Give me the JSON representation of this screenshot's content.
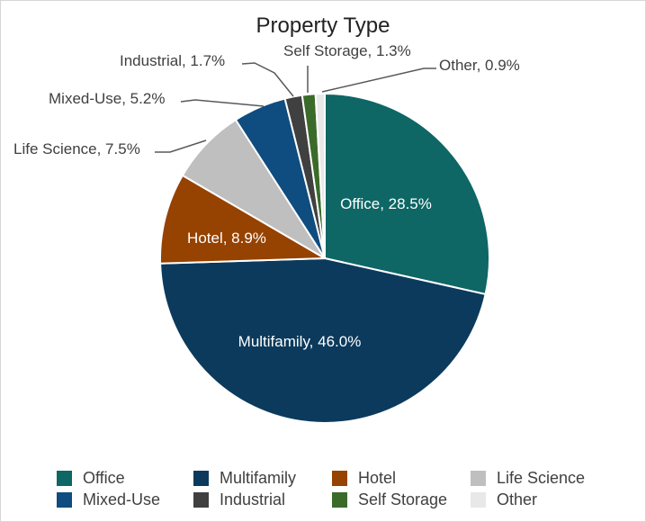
{
  "chart_data": {
    "type": "pie",
    "title": "Property Type",
    "slices": [
      {
        "name": "Office",
        "value": 28.5,
        "label": "Office, 28.5%",
        "color": "#0e6665",
        "label_color": "#ffffff"
      },
      {
        "name": "Multifamily",
        "value": 46.0,
        "label": "Multifamily, 46.0%",
        "color": "#0b3a5c",
        "label_color": "#ffffff"
      },
      {
        "name": "Hotel",
        "value": 8.9,
        "label": "Hotel, 8.9%",
        "color": "#964200",
        "label_color": "#ffffff"
      },
      {
        "name": "Life Science",
        "value": 7.5,
        "label": "Life Science, 7.5%",
        "color": "#bfbfbf",
        "label_color": "#404040"
      },
      {
        "name": "Mixed-Use",
        "value": 5.2,
        "label": "Mixed-Use, 5.2%",
        "color": "#0f4c7f",
        "label_color": "#404040"
      },
      {
        "name": "Industrial",
        "value": 1.7,
        "label": "Industrial, 1.7%",
        "color": "#404040",
        "label_color": "#404040"
      },
      {
        "name": "Self Storage",
        "value": 1.3,
        "label": "Self Storage, 1.3%",
        "color": "#3a6b2a",
        "label_color": "#404040"
      },
      {
        "name": "Other",
        "value": 0.9,
        "label": "Other, 0.9%",
        "color": "#e8e8e8",
        "label_color": "#404040"
      }
    ],
    "legend": [
      "Office",
      "Multifamily",
      "Hotel",
      "Life Science",
      "Mixed-Use",
      "Industrial",
      "Self Storage",
      "Other"
    ],
    "legend_position": "bottom"
  }
}
